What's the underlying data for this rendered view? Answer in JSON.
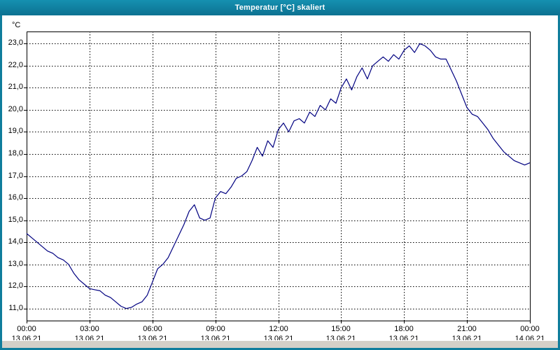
{
  "window": {
    "title": "Temperatur [°C] skaliert",
    "title_bar_color": "#0f7d9c",
    "border_color": "#0f7d9c"
  },
  "chart_data": {
    "type": "line",
    "title": "Temperatur [°C] skaliert",
    "xlabel": "",
    "ylabel": "°C",
    "unit_label": "°C",
    "line_color": "#000080",
    "grid": {
      "style": "dashed",
      "color": "#000000"
    },
    "legend": "none",
    "ylim": [
      10.45,
      23.55
    ],
    "yticks": [
      11,
      12,
      13,
      14,
      15,
      16,
      17,
      18,
      19,
      20,
      21,
      22,
      23
    ],
    "ytick_labels": [
      "11,0",
      "12,0",
      "13,0",
      "14,0",
      "15,0",
      "16,0",
      "17,0",
      "18,0",
      "19,0",
      "20,0",
      "21,0",
      "22,0",
      "23,0"
    ],
    "xlim_hours": [
      0,
      24
    ],
    "xticks_hours": [
      0,
      3,
      6,
      9,
      12,
      15,
      18,
      21,
      24
    ],
    "xtick_time_labels": [
      "00:00",
      "03:00",
      "06:00",
      "09:00",
      "12:00",
      "15:00",
      "18:00",
      "21:00",
      "00:00"
    ],
    "xtick_date_labels": [
      "13.06.21",
      "13.06.21",
      "13.06.21",
      "13.06.21",
      "13.06.21",
      "13.06.21",
      "13.06.21",
      "13.06.21",
      "14.06.21"
    ],
    "series_name": "Temperatur",
    "x_hours_start": 0,
    "x_hours_step": 0.25,
    "values": [
      14.4,
      14.2,
      14.0,
      13.8,
      13.6,
      13.5,
      13.3,
      13.2,
      13.0,
      12.6,
      12.3,
      12.1,
      11.9,
      11.85,
      11.8,
      11.6,
      11.5,
      11.3,
      11.1,
      11.0,
      11.05,
      11.2,
      11.3,
      11.6,
      12.2,
      12.8,
      13.0,
      13.3,
      13.8,
      14.3,
      14.8,
      15.4,
      15.7,
      15.1,
      15.0,
      15.1,
      16.0,
      16.3,
      16.2,
      16.5,
      16.9,
      17.0,
      17.2,
      17.7,
      18.3,
      17.9,
      18.6,
      18.3,
      19.1,
      19.4,
      19.0,
      19.5,
      19.6,
      19.4,
      19.9,
      19.7,
      20.2,
      20.0,
      20.5,
      20.3,
      21.0,
      21.4,
      20.9,
      21.5,
      21.9,
      21.4,
      22.0,
      22.2,
      22.4,
      22.2,
      22.5,
      22.3,
      22.7,
      22.9,
      22.6,
      23.0,
      22.9,
      22.7,
      22.4,
      22.3,
      22.3,
      21.8,
      21.3,
      20.7,
      20.1,
      19.8,
      19.7,
      19.4,
      19.1,
      18.7,
      18.4,
      18.1,
      17.9,
      17.7,
      17.6,
      17.5,
      17.6
    ]
  },
  "scrollbar": {
    "present": true
  }
}
